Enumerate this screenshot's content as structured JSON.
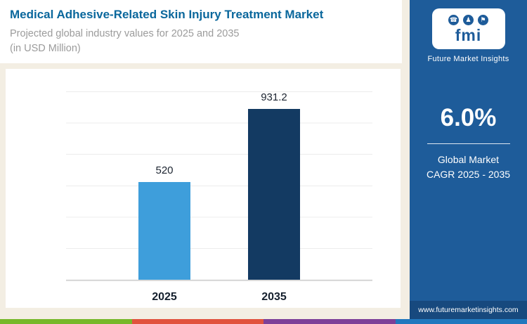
{
  "header": {
    "title": "Medical Adhesive-Related Skin Injury Treatment Market",
    "subtitle_line1": "Projected global industry values for 2025 and 2035",
    "subtitle_line2": "(in USD Million)"
  },
  "sidebar": {
    "logo_text": "fmi",
    "logo_icons": [
      {
        "name": "phone-icon",
        "glyph": "☎"
      },
      {
        "name": "people-icon",
        "glyph": "♟"
      },
      {
        "name": "flag-icon",
        "glyph": "⚑"
      }
    ],
    "brand_name": "Future Market Insights",
    "cagr_value": "6.0%",
    "cagr_label_line1": "Global Market",
    "cagr_label_line2": "CAGR 2025 - 2035",
    "website": "www.futuremarketinsights.com"
  },
  "chart_data": {
    "type": "bar",
    "title": "Medical Adhesive-Related Skin Injury Treatment Market",
    "subtitle": "Projected global industry values for 2025 and 2035 (in USD Million)",
    "categories": [
      "2025",
      "2035"
    ],
    "values": [
      520,
      931.2
    ],
    "value_labels": [
      "520",
      "931.2"
    ],
    "ylabel": "USD Million",
    "ylim": [
      0,
      1000
    ],
    "grid": true,
    "bar_colors": [
      "#3e9edb",
      "#133a62"
    ],
    "annotations": [
      "Global Market CAGR 2025 - 2035: 6.0%"
    ]
  },
  "colors": {
    "background": "#f3eee3",
    "panel_blue": "#1e5c9a",
    "title_blue": "#0a679c",
    "bar_2025": "#3e9edb",
    "bar_2035": "#133a62",
    "stripe": [
      "#76b82a",
      "#e1523d",
      "#7d3f98",
      "#2178be"
    ]
  }
}
